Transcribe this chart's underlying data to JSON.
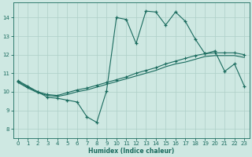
{
  "xlabel": "Humidex (Indice chaleur)",
  "xlim": [
    -0.5,
    23.5
  ],
  "ylim": [
    7.5,
    14.8
  ],
  "yticks": [
    8,
    9,
    10,
    11,
    12,
    13,
    14
  ],
  "xticks": [
    0,
    1,
    2,
    3,
    4,
    5,
    6,
    7,
    8,
    9,
    10,
    11,
    12,
    13,
    14,
    15,
    16,
    17,
    18,
    19,
    20,
    21,
    22,
    23
  ],
  "bg_color": "#cee8e2",
  "line_color": "#1a6b5e",
  "grid_color": "#aecfc8",
  "top_x": [
    0,
    1,
    2,
    3,
    4,
    5,
    6,
    7,
    8,
    9,
    10,
    11,
    12,
    13,
    14,
    15,
    16,
    17,
    18,
    19,
    20,
    21,
    22,
    23
  ],
  "top_y": [
    10.6,
    10.3,
    10.0,
    9.7,
    9.65,
    9.55,
    9.45,
    8.65,
    8.35,
    10.05,
    14.0,
    13.9,
    12.6,
    14.35,
    14.3,
    13.6,
    14.3,
    13.8,
    12.85,
    12.05,
    12.2,
    11.1,
    11.5,
    10.3
  ],
  "mid_x": [
    0,
    1,
    2,
    3,
    4,
    5,
    6,
    7,
    8,
    9,
    10,
    11,
    12,
    13,
    14,
    15,
    16,
    17,
    18,
    19,
    20,
    21,
    22,
    23
  ],
  "mid_y": [
    10.55,
    10.25,
    10.0,
    9.85,
    9.8,
    9.95,
    10.1,
    10.2,
    10.35,
    10.5,
    10.65,
    10.8,
    11.0,
    11.15,
    11.3,
    11.5,
    11.65,
    11.8,
    11.95,
    12.05,
    12.1,
    12.1,
    12.1,
    12.0
  ],
  "low_x": [
    0,
    1,
    2,
    3,
    4,
    5,
    6,
    7,
    8,
    9,
    10,
    11,
    12,
    13,
    14,
    15,
    16,
    17,
    18,
    19,
    20,
    21,
    22,
    23
  ],
  "low_y": [
    10.5,
    10.2,
    9.95,
    9.8,
    9.75,
    9.85,
    10.0,
    10.1,
    10.25,
    10.4,
    10.55,
    10.7,
    10.85,
    11.0,
    11.15,
    11.35,
    11.5,
    11.6,
    11.75,
    11.9,
    11.95,
    11.95,
    11.95,
    11.85
  ]
}
